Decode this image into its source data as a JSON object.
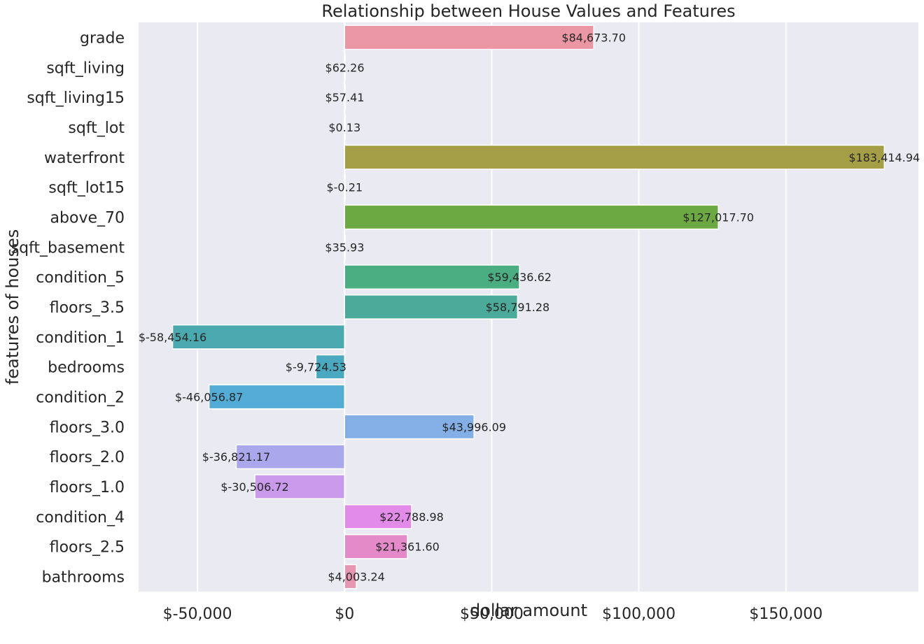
{
  "chart_data": {
    "type": "bar",
    "orientation": "horizontal",
    "title": "Relationship between House Values and Features",
    "xlabel": "dollar amount",
    "ylabel": "features of houses",
    "xlim": [
      -70000,
      195000
    ],
    "xticks": [
      -50000,
      0,
      50000,
      100000,
      150000
    ],
    "xtick_labels": [
      "$-50,000",
      "$0",
      "$50,000",
      "$100,000",
      "$150,000"
    ],
    "grid": true,
    "background": "#eaeaf2",
    "categories": [
      "grade",
      "sqft_living",
      "sqft_living15",
      "sqft_lot",
      "waterfront",
      "sqft_lot15",
      "above_70",
      "sqft_basement",
      "condition_5",
      "floors_3.5",
      "condition_1",
      "bedrooms",
      "condition_2",
      "floors_3.0",
      "floors_2.0",
      "floors_1.0",
      "condition_4",
      "floors_2.5",
      "bathrooms"
    ],
    "values": [
      84673.7,
      62.26,
      57.41,
      0.13,
      183414.94,
      -0.21,
      127017.7,
      35.93,
      59436.62,
      58791.28,
      -58454.16,
      -9724.53,
      -46056.87,
      43996.09,
      -36821.17,
      -30506.72,
      22788.98,
      21361.6,
      4003.24
    ],
    "value_labels": [
      "$84,673.70",
      "$62.26",
      "$57.41",
      "$0.13",
      "$183,414.94",
      "$-0.21",
      "$127,017.70",
      "$35.93",
      "$59,436.62",
      "$58,791.28",
      "$-58,454.16",
      "$-9,724.53",
      "$-46,056.87",
      "$43,996.09",
      "$-36,821.17",
      "$-30,506.72",
      "$22,788.98",
      "$21,361.60",
      "$4,003.24"
    ],
    "colors": [
      "#ea96a3",
      "#e49e78",
      "#d9a550",
      "#c0ab4a",
      "#a49e46",
      "#8ca644",
      "#6da942",
      "#4bac5c",
      "#4aae82",
      "#4baa9a",
      "#4aa9ae",
      "#4aa9c0",
      "#52acd5",
      "#83aee6",
      "#aaa7ec",
      "#c99aeb",
      "#e38be9",
      "#e58ac9",
      "#e696b1"
    ]
  }
}
